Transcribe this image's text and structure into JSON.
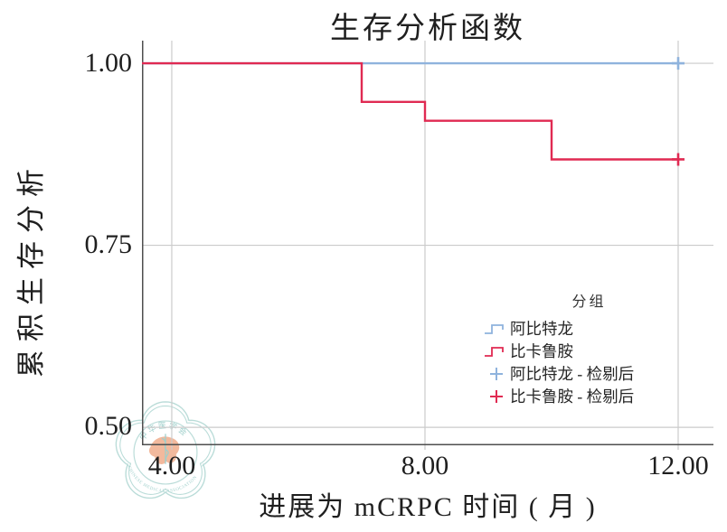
{
  "title": "生存分析函数",
  "axes": {
    "x_title": "进展为 mCRPC 时间 ( 月 )",
    "y_title": "累积生存分析",
    "xtick_labels": [
      "4.00",
      "8.00",
      "12.00"
    ],
    "ytick_labels": [
      "1.00",
      "0.75",
      "0.50"
    ]
  },
  "legend": {
    "title": "分组",
    "items": [
      {
        "label": "阿比特龙",
        "marker": "step",
        "color": "#8fb3dd"
      },
      {
        "label": "比卡鲁胺",
        "marker": "step",
        "color": "#e02a52"
      },
      {
        "label": "阿比特龙 - 检剔后",
        "marker": "plus",
        "color": "#8fb3dd"
      },
      {
        "label": "比卡鲁胺 - 检剔后",
        "marker": "plus",
        "color": "#e02a52"
      }
    ]
  },
  "watermark": {
    "top_text": "中华医学会",
    "bottom_text": "CHINESE MEDICAL ASSOCIATION",
    "ring_color": "#aed6d2",
    "text_color": "#8ec7c2",
    "map_color": "#f0ad8d"
  },
  "chart_data": {
    "type": "line",
    "subtype": "step-post-survival",
    "title": "生存分析函数",
    "xlabel": "进展为 mCRPC 时间 ( 月 )",
    "ylabel": "累积生存分析",
    "xlim": [
      3.529,
      12.557
    ],
    "ylim": [
      0.4753,
      1.0311
    ],
    "xticks": [
      4.0,
      8.0,
      12.0
    ],
    "yticks": [
      1.0,
      0.75,
      0.5
    ],
    "grid": true,
    "grid_color": "#cbcbcb",
    "axis_color": "#4f4f4f",
    "legend_position": "inside-right",
    "series": [
      {
        "name": "阿比特龙",
        "color": "#8fb3dd",
        "x": [
          3.529,
          12.0
        ],
        "y": [
          1.0,
          1.0
        ],
        "censored": [
          {
            "x": 12.0,
            "y": 1.0
          }
        ]
      },
      {
        "name": "比卡鲁胺",
        "color": "#e02a52",
        "x": [
          3.529,
          7.0,
          8.0,
          10.0,
          12.0
        ],
        "y": [
          1.0,
          0.947,
          0.921,
          0.868,
          0.868
        ],
        "censored": [
          {
            "x": 12.0,
            "y": 0.868
          }
        ]
      }
    ]
  }
}
